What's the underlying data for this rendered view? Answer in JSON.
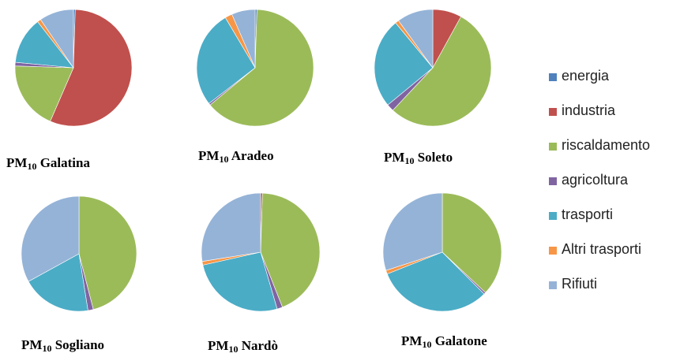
{
  "chart_data": [
    {
      "type": "pie",
      "title": {
        "prefix": "PM",
        "sub": "10",
        "name": "Galatina"
      },
      "categories": [
        "energia",
        "industria",
        "riscaldamento",
        "agricoltura",
        "trasporti",
        "Altri trasporti",
        "Rifiuti"
      ],
      "values": [
        0.5,
        56,
        19,
        1,
        13,
        1,
        9.5
      ]
    },
    {
      "type": "pie",
      "title": {
        "prefix": "PM",
        "sub": "10",
        "name": "Aradeo"
      },
      "categories": [
        "energia",
        "industria",
        "riscaldamento",
        "agricoltura",
        "trasporti",
        "Altri trasporti",
        "Rifiuti"
      ],
      "values": [
        0.5,
        0,
        63.5,
        0.5,
        27,
        2,
        6.5
      ]
    },
    {
      "type": "pie",
      "title": {
        "prefix": "PM",
        "sub": "10",
        "name": "Soleto"
      },
      "categories": [
        "energia",
        "industria",
        "riscaldamento",
        "agricoltura",
        "trasporti",
        "Altri trasporti",
        "Rifiuti"
      ],
      "values": [
        0,
        8,
        54,
        2,
        25,
        1,
        10
      ]
    },
    {
      "type": "pie",
      "title": {
        "prefix": "PM",
        "sub": "10",
        "name": "Sogliano"
      },
      "categories": [
        "energia",
        "industria",
        "riscaldamento",
        "agricoltura",
        "trasporti",
        "Altri trasporti",
        "Rifiuti"
      ],
      "values": [
        0,
        0,
        46,
        1.5,
        19.5,
        0,
        33
      ]
    },
    {
      "type": "pie",
      "title": {
        "prefix": "PM",
        "sub": "10",
        "name": "Nardò"
      },
      "categories": [
        "energia",
        "industria",
        "riscaldamento",
        "agricoltura",
        "trasporti",
        "Altri trasporti",
        "Rifiuti"
      ],
      "values": [
        0,
        0.5,
        43.5,
        1.5,
        26,
        1,
        27.5
      ]
    },
    {
      "type": "pie",
      "title": {
        "prefix": "PM",
        "sub": "10",
        "name": "Galatone"
      },
      "categories": [
        "energia",
        "industria",
        "riscaldamento",
        "agricoltura",
        "trasporti",
        "Altri trasporti",
        "Rifiuti"
      ],
      "values": [
        0,
        0,
        37,
        0.5,
        31.5,
        1,
        30
      ]
    }
  ],
  "legend": [
    {
      "label": "energia",
      "color": "#4f81bd"
    },
    {
      "label": "industria",
      "color": "#c0504d"
    },
    {
      "label": "riscaldamento",
      "color": "#9bbb59"
    },
    {
      "label": "agricoltura",
      "color": "#8064a2"
    },
    {
      "label": "trasporti",
      "color": "#4bacc6"
    },
    {
      "label": "Altri trasporti",
      "color": "#f79646"
    },
    {
      "label": "Rifiuti",
      "color": "#95b3d7"
    }
  ]
}
